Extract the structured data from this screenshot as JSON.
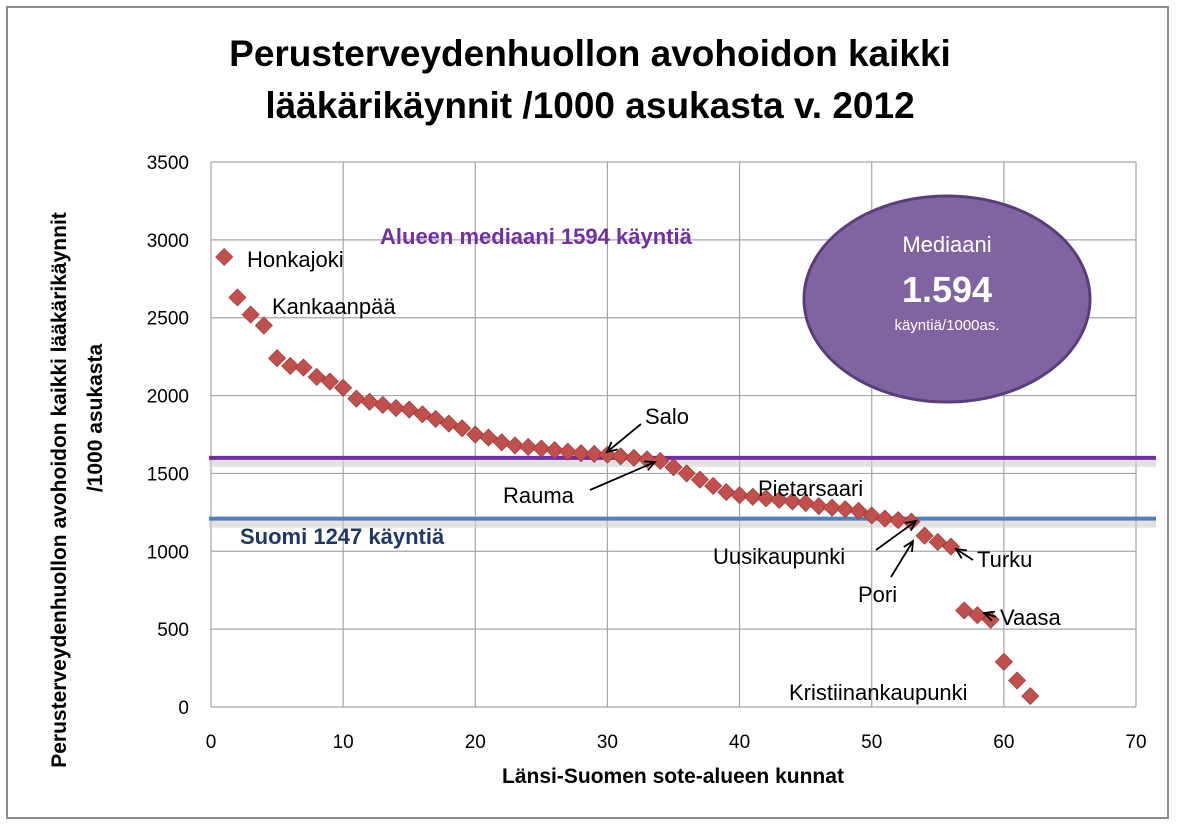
{
  "chart_data": {
    "type": "scatter",
    "title_lines": [
      "Perusterveydenhuollon avohoidon kaikki",
      "lääkärikäynnit /1000 asukasta v. 2012"
    ],
    "xlabel": "Länsi-Suomen sote-alueen kunnat",
    "ylabel_lines": [
      "Perusterveydenhuollon avohoidon kaikki lääkärikäynnit",
      "/1000 asukasta"
    ],
    "xlim": [
      0,
      70
    ],
    "ylim": [
      0,
      3500
    ],
    "x_ticks": [
      0,
      10,
      20,
      30,
      40,
      50,
      60,
      70
    ],
    "y_ticks": [
      0,
      500,
      1000,
      1500,
      2000,
      2500,
      3000,
      3500
    ],
    "grid": true,
    "marker_color": "#c0504d",
    "x": [
      1,
      2,
      3,
      4,
      5,
      6,
      7,
      8,
      9,
      10,
      11,
      12,
      13,
      14,
      15,
      16,
      17,
      18,
      19,
      20,
      21,
      22,
      23,
      24,
      25,
      26,
      27,
      28,
      29,
      30,
      31,
      32,
      33,
      34,
      35,
      36,
      37,
      38,
      39,
      40,
      41,
      42,
      43,
      44,
      45,
      46,
      47,
      48,
      49,
      50,
      51,
      52,
      53,
      54,
      55,
      56,
      57,
      58,
      59,
      60,
      61,
      62
    ],
    "y": [
      2890,
      2630,
      2520,
      2450,
      2240,
      2190,
      2180,
      2120,
      2090,
      2050,
      1980,
      1960,
      1940,
      1920,
      1910,
      1880,
      1850,
      1820,
      1790,
      1750,
      1730,
      1700,
      1680,
      1670,
      1660,
      1650,
      1640,
      1630,
      1625,
      1620,
      1610,
      1600,
      1590,
      1580,
      1540,
      1500,
      1460,
      1420,
      1380,
      1360,
      1350,
      1340,
      1330,
      1320,
      1310,
      1290,
      1280,
      1270,
      1260,
      1230,
      1210,
      1200,
      1190,
      1100,
      1060,
      1030,
      620,
      590,
      560,
      290,
      170,
      70
    ],
    "reference_lines": [
      {
        "label": "Alueen mediaani 1594 käyntiä",
        "value": 1594,
        "color": "#7030a0"
      },
      {
        "label": "Suomi 1247 käyntiä",
        "value": 1247,
        "color": "#4f81bd",
        "label_color": "#1f3864"
      }
    ],
    "annotations": [
      {
        "text": "Honkajoki"
      },
      {
        "text": "Kankaanpää"
      },
      {
        "text": "Salo"
      },
      {
        "text": "Rauma"
      },
      {
        "text": "Pietarsaari"
      },
      {
        "text": "Uusikaupunki"
      },
      {
        "text": "Turku"
      },
      {
        "text": "Pori"
      },
      {
        "text": "Vaasa"
      },
      {
        "text": "Kristiinankaupunki"
      }
    ]
  },
  "callout": {
    "title": "Mediaani",
    "value": "1.594",
    "unit": "käyntiä/1000as.",
    "fill_color": "#8064a2",
    "border_color": "#5a3e7a"
  }
}
